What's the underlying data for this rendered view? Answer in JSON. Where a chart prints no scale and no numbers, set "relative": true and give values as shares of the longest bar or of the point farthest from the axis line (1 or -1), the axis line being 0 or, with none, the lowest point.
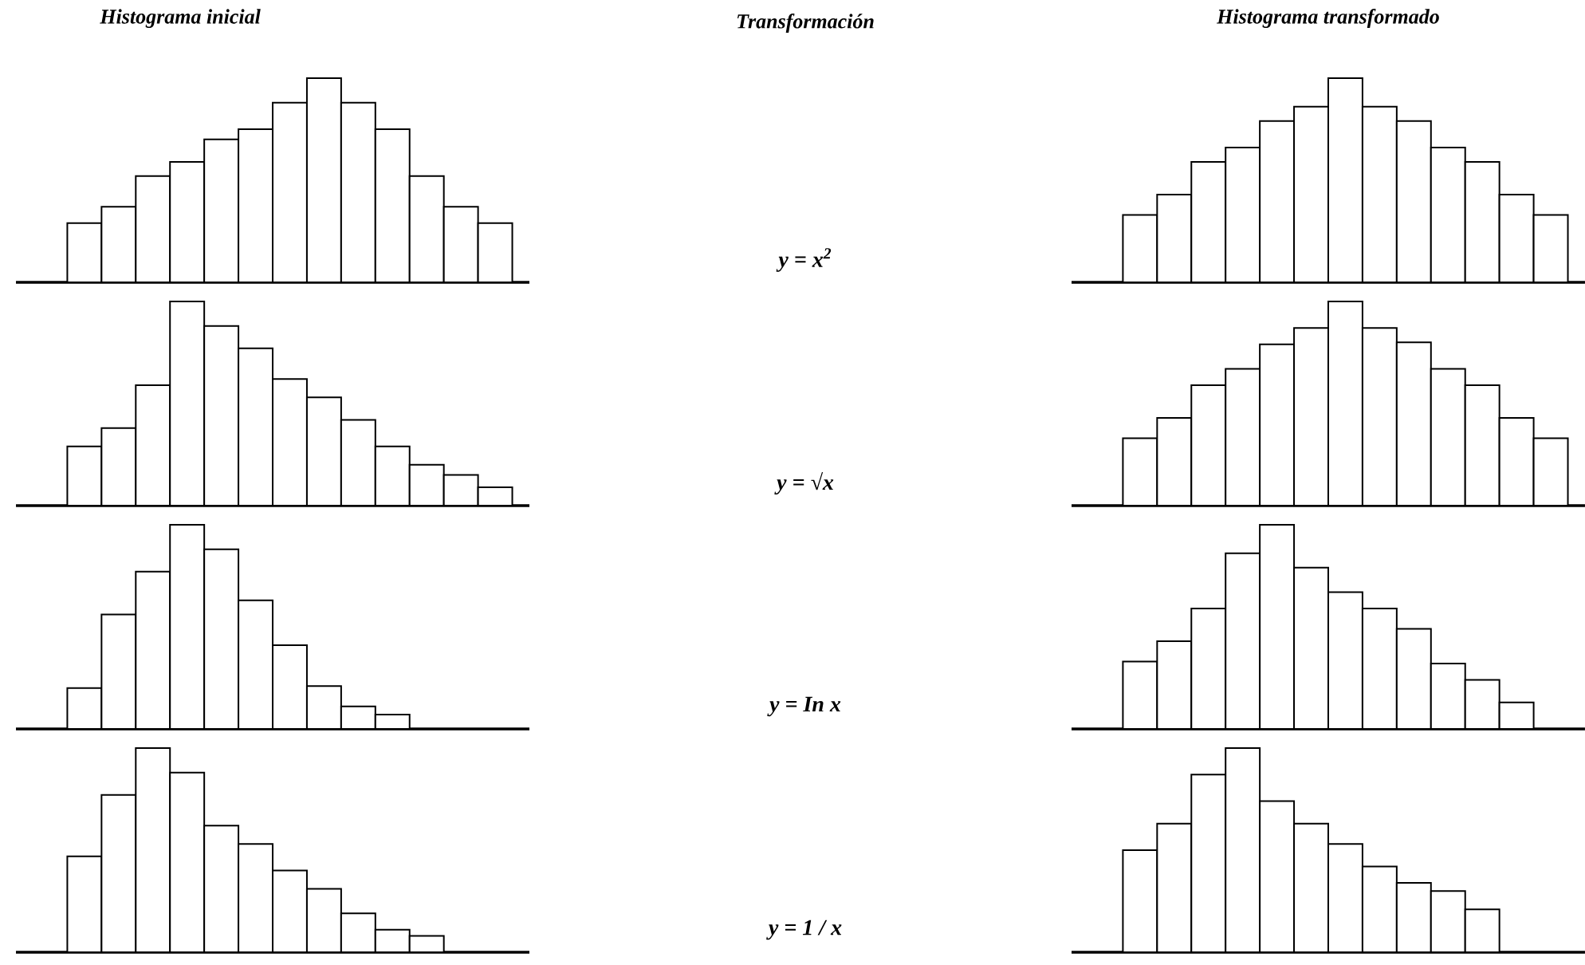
{
  "chart_data": [
    {
      "type": "bar",
      "title": "Histograma inicial",
      "relative": true,
      "color": "#ffffff",
      "categories": [
        null,
        null,
        null,
        null,
        null,
        null,
        null,
        null,
        null,
        null,
        null,
        null,
        null
      ],
      "values": [
        0.29,
        0.37,
        0.52,
        0.59,
        0.7,
        0.75,
        0.88,
        1,
        0.88,
        0.75,
        0.52,
        0.37,
        0.29
      ]
    },
    {
      "type": "bar",
      "title": "Histograma transformado",
      "relative": true,
      "color": "#ffffff",
      "categories": [
        null,
        null,
        null,
        null,
        null,
        null,
        null,
        null,
        null,
        null,
        null,
        null,
        null
      ],
      "values": [
        0.33,
        0.43,
        0.59,
        0.66,
        0.79,
        0.86,
        1,
        0.86,
        0.79,
        0.66,
        0.59,
        0.43,
        0.33
      ]
    },
    {
      "type": "bar",
      "relative": true,
      "color": "#ffffff",
      "categories": [
        null,
        null,
        null,
        null,
        null,
        null,
        null,
        null,
        null,
        null,
        null,
        null,
        null
      ],
      "values": [
        0.29,
        0.38,
        0.59,
        1,
        0.88,
        0.77,
        0.62,
        0.53,
        0.42,
        0.29,
        0.2,
        0.15,
        0.09
      ]
    },
    {
      "type": "bar",
      "relative": true,
      "color": "#ffffff",
      "categories": [
        null,
        null,
        null,
        null,
        null,
        null,
        null,
        null,
        null,
        null,
        null,
        null,
        null
      ],
      "values": [
        0.33,
        0.43,
        0.59,
        0.67,
        0.79,
        0.87,
        1,
        0.87,
        0.8,
        0.67,
        0.59,
        0.43,
        0.33
      ]
    },
    {
      "type": "bar",
      "relative": true,
      "color": "#ffffff",
      "categories": [
        null,
        null,
        null,
        null,
        null,
        null,
        null,
        null,
        null,
        null
      ],
      "values": [
        0.2,
        0.56,
        0.77,
        1,
        0.88,
        0.63,
        0.41,
        0.21,
        0.11,
        0.07
      ]
    },
    {
      "type": "bar",
      "relative": true,
      "color": "#ffffff",
      "categories": [
        null,
        null,
        null,
        null,
        null,
        null,
        null,
        null,
        null,
        null,
        null,
        null
      ],
      "values": [
        0.33,
        0.43,
        0.59,
        0.86,
        1,
        0.79,
        0.67,
        0.59,
        0.49,
        0.32,
        0.24,
        0.13
      ]
    },
    {
      "type": "bar",
      "relative": true,
      "color": "#ffffff",
      "categories": [
        null,
        null,
        null,
        null,
        null,
        null,
        null,
        null,
        null,
        null,
        null
      ],
      "values": [
        0.47,
        0.77,
        1,
        0.88,
        0.62,
        0.53,
        0.4,
        0.31,
        0.19,
        0.11,
        0.08
      ]
    },
    {
      "type": "bar",
      "relative": true,
      "color": "#ffffff",
      "categories": [
        null,
        null,
        null,
        null,
        null,
        null,
        null,
        null,
        null,
        null,
        null
      ],
      "values": [
        0.5,
        0.63,
        0.87,
        1,
        0.74,
        0.63,
        0.53,
        0.42,
        0.34,
        0.3,
        0.21
      ]
    },
    {
      "type": "other",
      "title": "Transformación",
      "annotations": [
        "y = x$^{2}$",
        "y = √x",
        "y = In x",
        "y = 1 / x"
      ]
    }
  ]
}
